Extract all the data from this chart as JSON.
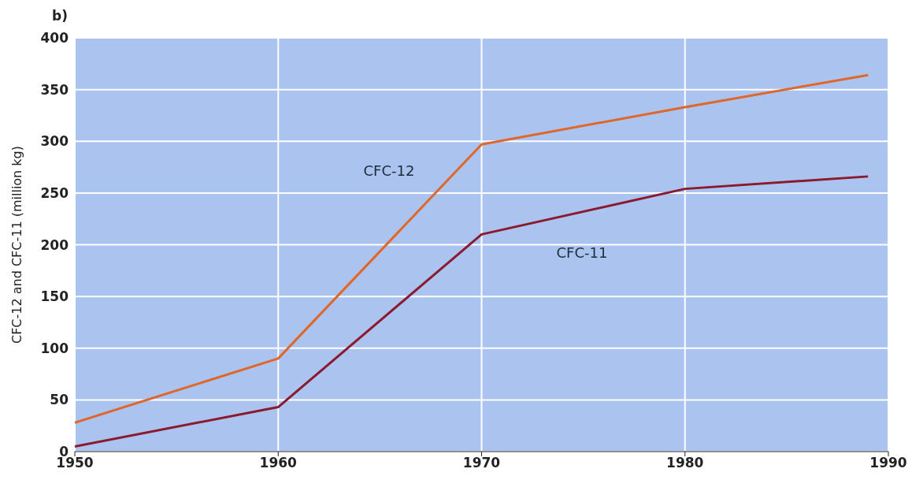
{
  "chart_data": {
    "type": "line",
    "title": "b)",
    "ylabel": "CFC-12 and CFC-11 (million kg)",
    "x": [
      1950,
      1960,
      1970,
      1980,
      1989
    ],
    "series": [
      {
        "name": "CFC-12",
        "color": "#e0672a",
        "values": [
          28,
          90,
          297,
          333,
          364
        ]
      },
      {
        "name": "CFC-11",
        "color": "#8b1a2e",
        "values": [
          5,
          43,
          210,
          254,
          266
        ]
      }
    ],
    "xlim": [
      1950,
      1990
    ],
    "xticks": [
      1950,
      1960,
      1970,
      1980,
      1990
    ],
    "ylim": [
      0,
      400
    ],
    "yticks": [
      0,
      50,
      100,
      150,
      200,
      250,
      300,
      350,
      400
    ],
    "grid": true,
    "marker": "none",
    "line_style": "solid"
  }
}
